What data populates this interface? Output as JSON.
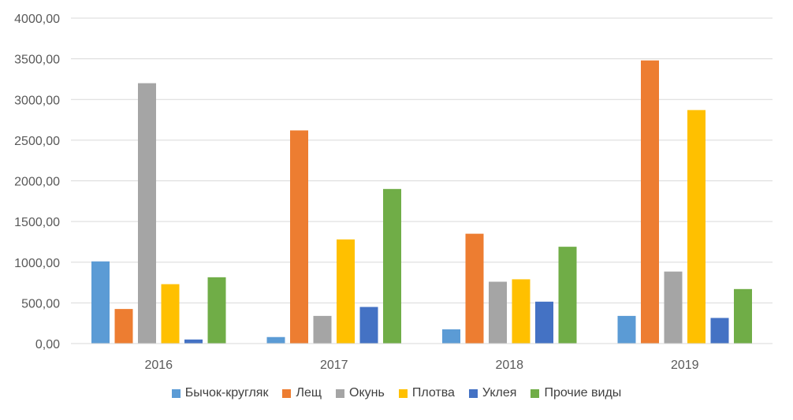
{
  "chart_data": {
    "type": "bar",
    "title": "",
    "xlabel": "",
    "ylabel": "",
    "categories": [
      "2016",
      "2017",
      "2018",
      "2019"
    ],
    "ylim": [
      0,
      4000
    ],
    "yticks": [
      "0,00",
      "500,00",
      "1000,00",
      "1500,00",
      "2000,00",
      "2500,00",
      "3000,00",
      "3500,00",
      "4000,00"
    ],
    "grid": true,
    "legend_position": "bottom",
    "series": [
      {
        "name": "Бычок-кругляк",
        "color": "#5B9BD5",
        "values": [
          1010,
          80,
          175,
          340
        ]
      },
      {
        "name": "Лещ",
        "color": "#ED7D31",
        "values": [
          425,
          2620,
          1350,
          3480
        ]
      },
      {
        "name": "Окунь",
        "color": "#A5A5A5",
        "values": [
          3200,
          340,
          760,
          885
        ]
      },
      {
        "name": "Плотва",
        "color": "#FFC000",
        "values": [
          730,
          1280,
          790,
          2870
        ]
      },
      {
        "name": "Уклея",
        "color": "#4472C4",
        "values": [
          50,
          450,
          515,
          315
        ]
      },
      {
        "name": "Прочие виды",
        "color": "#70AD47",
        "values": [
          815,
          1900,
          1190,
          670
        ]
      }
    ]
  }
}
